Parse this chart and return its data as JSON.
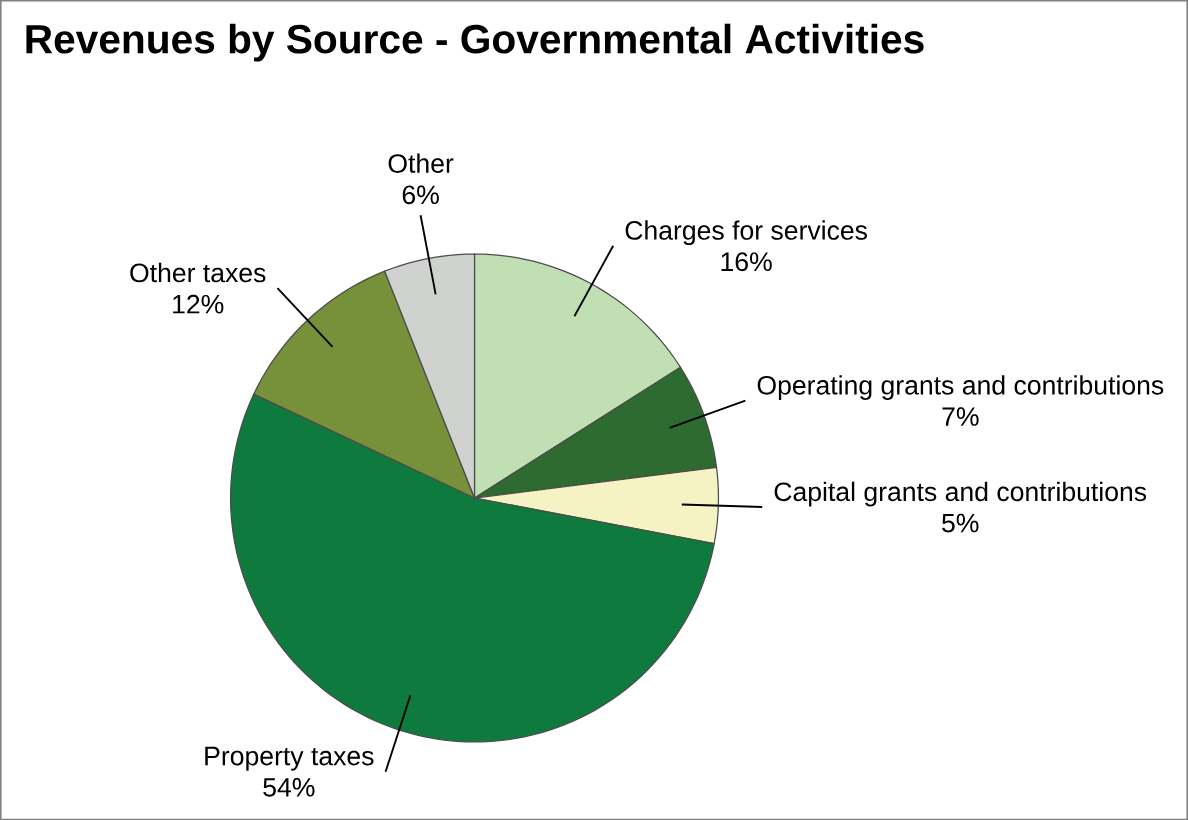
{
  "chart_data": {
    "type": "pie",
    "title": "Revenues by Source - Governmental Activities",
    "categories": [
      "Charges for services",
      "Operating grants and contributions",
      "Capital grants and contributions",
      "Property taxes",
      "Other taxes",
      "Other"
    ],
    "values": [
      16,
      7,
      5,
      54,
      12,
      6
    ],
    "value_labels": [
      "16%",
      "7%",
      "5%",
      "54%",
      "12%",
      "6%"
    ],
    "colors": [
      "#c0e0b4",
      "#2e6b30",
      "#f5f3c4",
      "#0e7a3e",
      "#76913a",
      "#d0d2d0"
    ]
  }
}
